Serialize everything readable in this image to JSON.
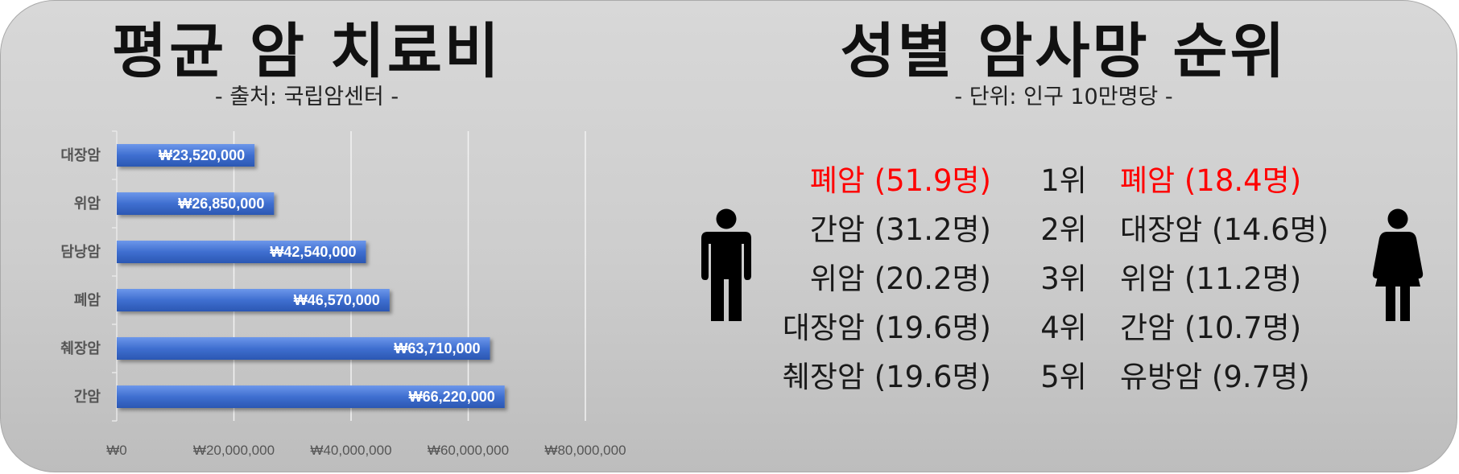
{
  "left_panel": {
    "title": "평균 암 치료비",
    "subtitle": "- 출처: 국립암센터 -"
  },
  "right_panel": {
    "title": "성별 암사망 순위",
    "subtitle": "- 단위: 인구 10만명당 -",
    "ranks": [
      {
        "rank": "1위",
        "male": "폐암 (51.9명)",
        "female": "폐암 (18.4명)",
        "highlight": true
      },
      {
        "rank": "2위",
        "male": "간암 (31.2명)",
        "female": "대장암 (14.6명)",
        "highlight": false
      },
      {
        "rank": "3위",
        "male": "위암 (20.2명)",
        "female": "위암 (11.2명)",
        "highlight": false
      },
      {
        "rank": "4위",
        "male": "대장암 (19.6명)",
        "female": "간암 (10.7명)",
        "highlight": false
      },
      {
        "rank": "5위",
        "male": "췌장암 (19.6명)",
        "female": "유방암 (9.7명)",
        "highlight": false
      }
    ],
    "male_icon": "male-person-icon",
    "female_icon": "female-person-icon"
  },
  "chart_data": {
    "type": "bar",
    "orientation": "horizontal",
    "categories": [
      "대장암",
      "위암",
      "담낭암",
      "폐암",
      "췌장암",
      "간암"
    ],
    "values": [
      23520000,
      26850000,
      42540000,
      46570000,
      63710000,
      66220000
    ],
    "data_labels": [
      "₩23,520,000",
      "₩26,850,000",
      "₩42,540,000",
      "₩46,570,000",
      "₩63,710,000",
      "₩66,220,000"
    ],
    "xlim": [
      0,
      80000000
    ],
    "x_ticks": [
      0,
      20000000,
      40000000,
      60000000,
      80000000
    ],
    "x_tick_labels": [
      "₩0",
      "₩20,000,000",
      "₩40,000,000",
      "₩60,000,000",
      "₩80,000,000"
    ],
    "grid": true,
    "bar_color": "#3f6fd0",
    "label_color": "#ffffff",
    "highlight_color": "#ff0000"
  }
}
